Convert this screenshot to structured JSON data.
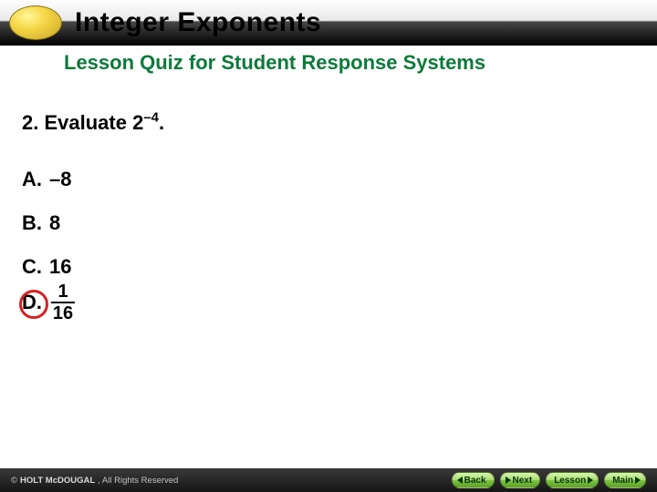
{
  "header": {
    "title": "Integer Exponents",
    "title_color": "#000000",
    "oval_gradient": [
      "#fff89a",
      "#f4d645",
      "#c9a227"
    ]
  },
  "subheader": {
    "title": "Lesson Quiz for Student Response Systems",
    "color": "#0c7a3a"
  },
  "question": {
    "number": "2.",
    "prompt": "Evaluate 2",
    "exponent": "–4",
    "suffix": "."
  },
  "options": [
    {
      "label": "A.",
      "value": "–8",
      "type": "plain"
    },
    {
      "label": "B.",
      "value": "8",
      "type": "plain"
    },
    {
      "label": "C.",
      "value": "16",
      "type": "plain"
    },
    {
      "label": "D.",
      "numerator": "1",
      "denominator": "16",
      "type": "fraction",
      "circled": true
    }
  ],
  "circle_color": "#d62222",
  "footer": {
    "copyright_prefix": "©",
    "brand": "HOLT McDOUGAL",
    "rights": ", All Rights Reserved",
    "buttons": [
      {
        "name": "back",
        "label": "Back",
        "arrow": "left"
      },
      {
        "name": "next",
        "label": "Next",
        "arrow": "right"
      },
      {
        "name": "lesson",
        "label": "Lesson",
        "arrow": "right"
      },
      {
        "name": "main",
        "label": "Main",
        "arrow": "right"
      }
    ]
  },
  "colors": {
    "background": "#ffffff",
    "text": "#000000",
    "footer_bg": [
      "#3a3a3a",
      "#151515"
    ],
    "btn_gradient": [
      "#d9f5b3",
      "#a9dd6e",
      "#7cc142",
      "#5fa126"
    ],
    "copyright": "#c0c0c0"
  }
}
